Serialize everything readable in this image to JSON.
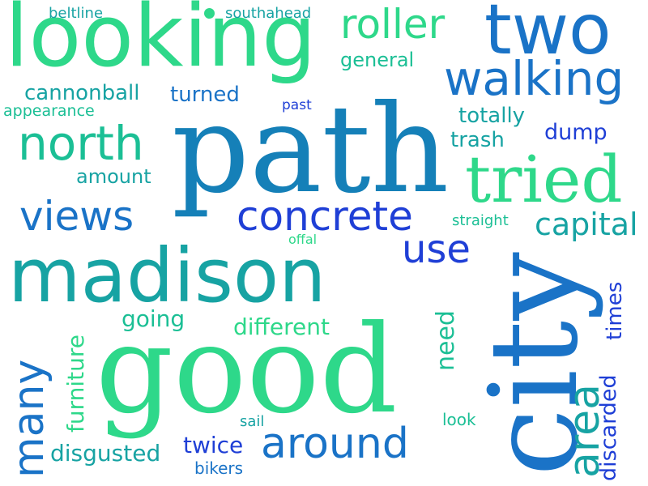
{
  "words": {
    "path": "path",
    "good": "good",
    "city": "city",
    "looking": "looking",
    "madison": "madison",
    "two": "two",
    "walking": "walking",
    "tried": "tried",
    "concrete": "concrete",
    "views": "views",
    "north": "north",
    "roller": "roller",
    "around": "around",
    "many": "many",
    "use": "use",
    "capital": "capital",
    "area": "area",
    "cannonball": "cannonball",
    "turned": "turned",
    "beltline": "beltline",
    "southahead": "southahead",
    "general": "general",
    "appearance": "appearance",
    "past": "past",
    "totally": "totally",
    "dump": "dump",
    "trash": "trash",
    "amount": "amount",
    "straight": "straight",
    "offal": "offal",
    "going": "going",
    "different": "different",
    "furniture": "furniture",
    "need": "need",
    "times": "times",
    "discarded": "discarded",
    "look": "look",
    "sail": "sail",
    "twice": "twice",
    "disgusted": "disgusted",
    "bikers": "bikers"
  },
  "colors": {
    "deep_blue": "#1f3fd6",
    "blue": "#1a73c7",
    "teal_blue": "#1580b8",
    "teal": "#17a3a3",
    "green_teal": "#1bbf95",
    "green": "#2ed88a"
  }
}
